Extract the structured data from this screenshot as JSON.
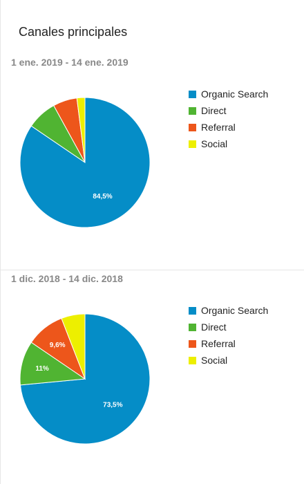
{
  "widget": {
    "title": "Canales principales"
  },
  "chart_data": [
    {
      "type": "pie",
      "subtitle": "1 ene. 2019 - 14 ene. 2019",
      "categories": [
        "Organic Search",
        "Direct",
        "Referral",
        "Social"
      ],
      "values": [
        84.5,
        7.5,
        6.0,
        2.0
      ],
      "colors": [
        "#058dc7",
        "#50b432",
        "#ed561b",
        "#edef00"
      ],
      "data_labels": [
        "84,5%",
        "",
        "",
        ""
      ],
      "legend": "right"
    },
    {
      "type": "pie",
      "subtitle": "1 dic. 2018 - 14 dic. 2018",
      "categories": [
        "Organic Search",
        "Direct",
        "Referral",
        "Social"
      ],
      "values": [
        73.5,
        11.0,
        9.6,
        5.9
      ],
      "colors": [
        "#058dc7",
        "#50b432",
        "#ed561b",
        "#edef00"
      ],
      "data_labels": [
        "73,5%",
        "11%",
        "9,6%",
        ""
      ],
      "legend": "right"
    }
  ]
}
